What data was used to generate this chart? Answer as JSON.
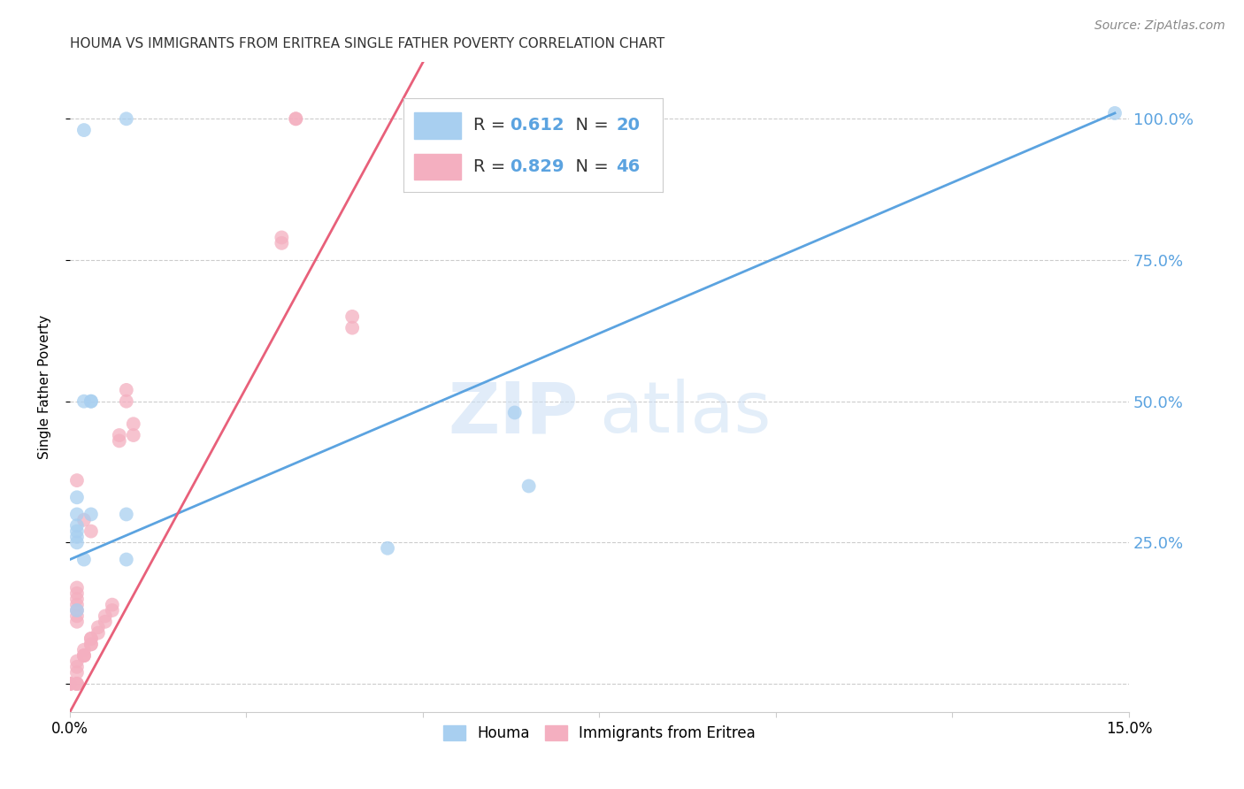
{
  "title": "HOUMA VS IMMIGRANTS FROM ERITREA SINGLE FATHER POVERTY CORRELATION CHART",
  "source": "Source: ZipAtlas.com",
  "ylabel": "Single Father Poverty",
  "xlim": [
    0.0,
    0.15
  ],
  "ylim": [
    -0.05,
    1.1
  ],
  "ytick_positions": [
    0.0,
    0.25,
    0.5,
    0.75,
    1.0
  ],
  "ytick_labels": [
    "",
    "25.0%",
    "50.0%",
    "75.0%",
    "100.0%"
  ],
  "xtick_positions": [
    0.0,
    0.025,
    0.05,
    0.075,
    0.1,
    0.125,
    0.15
  ],
  "xtick_labels": [
    "0.0%",
    "",
    "",
    "",
    "",
    "",
    "15.0%"
  ],
  "blue_label": "Houma",
  "pink_label": "Immigrants from Eritrea",
  "blue_R": "0.612",
  "blue_N": "20",
  "pink_R": "0.829",
  "pink_N": "46",
  "blue_color": "#a8cff0",
  "pink_color": "#f4afc0",
  "blue_line_color": "#5ba3e0",
  "pink_line_color": "#e8607a",
  "watermark_zip": "ZIP",
  "watermark_atlas": "atlas",
  "background_color": "#ffffff",
  "grid_color": "#cccccc",
  "axis_label_color": "#5ba3e0",
  "legend_text_color": "#333333",
  "legend_value_color": "#5ba3e0",
  "blue_scatter_x": [
    0.008,
    0.002,
    0.003,
    0.002,
    0.003,
    0.001,
    0.003,
    0.001,
    0.001,
    0.001,
    0.001,
    0.002,
    0.001,
    0.008,
    0.008,
    0.063,
    0.045,
    0.065,
    0.148,
    0.001
  ],
  "blue_scatter_y": [
    1.0,
    0.98,
    0.5,
    0.5,
    0.5,
    0.33,
    0.3,
    0.28,
    0.27,
    0.26,
    0.25,
    0.22,
    0.3,
    0.3,
    0.22,
    0.48,
    0.24,
    0.35,
    1.01,
    0.13
  ],
  "pink_scatter_x": [
    0.0,
    0.0,
    0.0,
    0.0,
    0.001,
    0.001,
    0.001,
    0.001,
    0.001,
    0.001,
    0.002,
    0.002,
    0.002,
    0.002,
    0.003,
    0.003,
    0.003,
    0.003,
    0.004,
    0.004,
    0.005,
    0.005,
    0.006,
    0.006,
    0.007,
    0.007,
    0.008,
    0.008,
    0.009,
    0.009,
    0.03,
    0.03,
    0.032,
    0.032,
    0.04,
    0.04,
    0.001,
    0.002,
    0.003,
    0.001,
    0.001,
    0.001,
    0.001,
    0.001,
    0.001,
    0.001
  ],
  "pink_scatter_y": [
    0.0,
    0.0,
    0.0,
    0.0,
    0.0,
    0.0,
    0.0,
    0.02,
    0.03,
    0.04,
    0.05,
    0.05,
    0.05,
    0.06,
    0.07,
    0.07,
    0.08,
    0.08,
    0.09,
    0.1,
    0.11,
    0.12,
    0.13,
    0.14,
    0.43,
    0.44,
    0.5,
    0.52,
    0.44,
    0.46,
    0.78,
    0.79,
    1.0,
    1.0,
    0.63,
    0.65,
    0.36,
    0.29,
    0.27,
    0.17,
    0.16,
    0.15,
    0.14,
    0.13,
    0.12,
    0.11
  ],
  "blue_line_x": [
    0.0,
    0.148
  ],
  "blue_line_y": [
    0.22,
    1.01
  ],
  "pink_line_x": [
    0.0,
    0.05
  ],
  "pink_line_y": [
    -0.05,
    1.1
  ]
}
